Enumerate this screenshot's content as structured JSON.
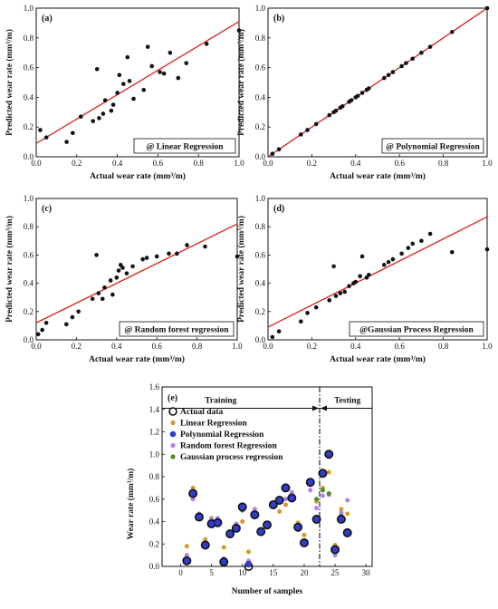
{
  "chart_data": [
    {
      "id": "a",
      "type": "scatter",
      "panel_label": "(a)",
      "legend": "@ Linear Regression",
      "xlabel": "Actual wear rate (mm³/m)",
      "ylabel": "Predicted wear rate (mm³/m)",
      "xlim": [
        0,
        1
      ],
      "ylim": [
        0,
        1.0
      ],
      "xticks": [
        "0.0",
        "0.2",
        "0.4",
        "0.6",
        "0.8",
        "1.0"
      ],
      "yticks": [
        "0.0",
        "0.2",
        "0.4",
        "0.6",
        "0.8",
        "1.0"
      ],
      "fit_line": {
        "intercept": 0.09,
        "slope": 0.82,
        "color": "#d62020"
      },
      "points": [
        [
          0.02,
          0.18
        ],
        [
          0.05,
          0.13
        ],
        [
          0.15,
          0.1
        ],
        [
          0.18,
          0.16
        ],
        [
          0.22,
          0.27
        ],
        [
          0.28,
          0.24
        ],
        [
          0.3,
          0.59
        ],
        [
          0.31,
          0.26
        ],
        [
          0.33,
          0.29
        ],
        [
          0.34,
          0.38
        ],
        [
          0.37,
          0.31
        ],
        [
          0.38,
          0.35
        ],
        [
          0.4,
          0.43
        ],
        [
          0.41,
          0.55
        ],
        [
          0.43,
          0.49
        ],
        [
          0.45,
          0.67
        ],
        [
          0.46,
          0.51
        ],
        [
          0.48,
          0.39
        ],
        [
          0.53,
          0.45
        ],
        [
          0.55,
          0.74
        ],
        [
          0.57,
          0.61
        ],
        [
          0.61,
          0.57
        ],
        [
          0.63,
          0.56
        ],
        [
          0.66,
          0.7
        ],
        [
          0.7,
          0.53
        ],
        [
          0.74,
          0.63
        ],
        [
          0.84,
          0.76
        ],
        [
          1.0,
          0.85
        ]
      ]
    },
    {
      "id": "b",
      "type": "scatter",
      "panel_label": "(b)",
      "legend": "@ Polynomial Regression",
      "xlabel": "Actual wear rate (mm³/m)",
      "ylabel": "Predicted wear rate (mm³/m)",
      "xlim": [
        0,
        1
      ],
      "ylim": [
        0,
        1.0
      ],
      "xticks": [
        "0.0",
        "0.2",
        "0.4",
        "0.6",
        "0.8",
        "1.0"
      ],
      "yticks": [
        "0.0",
        "0.2",
        "0.4",
        "0.6",
        "0.8",
        "1.0"
      ],
      "fit_line": {
        "intercept": 0.0,
        "slope": 1.0,
        "color": "#d62020"
      },
      "points": [
        [
          0.02,
          0.02
        ],
        [
          0.05,
          0.05
        ],
        [
          0.15,
          0.15
        ],
        [
          0.18,
          0.18
        ],
        [
          0.22,
          0.22
        ],
        [
          0.28,
          0.28
        ],
        [
          0.3,
          0.3
        ],
        [
          0.31,
          0.31
        ],
        [
          0.33,
          0.33
        ],
        [
          0.34,
          0.34
        ],
        [
          0.37,
          0.37
        ],
        [
          0.38,
          0.38
        ],
        [
          0.4,
          0.4
        ],
        [
          0.41,
          0.41
        ],
        [
          0.43,
          0.43
        ],
        [
          0.45,
          0.45
        ],
        [
          0.46,
          0.46
        ],
        [
          0.53,
          0.53
        ],
        [
          0.55,
          0.55
        ],
        [
          0.57,
          0.57
        ],
        [
          0.61,
          0.61
        ],
        [
          0.63,
          0.63
        ],
        [
          0.66,
          0.66
        ],
        [
          0.7,
          0.7
        ],
        [
          0.74,
          0.74
        ],
        [
          0.84,
          0.84
        ],
        [
          1.0,
          1.0
        ]
      ]
    },
    {
      "id": "c",
      "type": "scatter",
      "panel_label": "(c)",
      "legend": "@ Random forest regression",
      "xlabel": "Actual wear rate (mm³/m)",
      "ylabel": "Predicted wear rate (mm³/m)",
      "xlim": [
        0,
        1
      ],
      "ylim": [
        0,
        1.0
      ],
      "xticks": [
        "0.0",
        "0.2",
        "0.4",
        "0.6",
        "0.8",
        "1.0"
      ],
      "yticks": [
        "0.0",
        "0.2",
        "0.4",
        "0.6",
        "0.8",
        "1.0"
      ],
      "fit_line": {
        "intercept": 0.12,
        "slope": 0.7,
        "color": "#d62020"
      },
      "points": [
        [
          0.01,
          0.04
        ],
        [
          0.03,
          0.07
        ],
        [
          0.05,
          0.12
        ],
        [
          0.15,
          0.11
        ],
        [
          0.18,
          0.16
        ],
        [
          0.21,
          0.2
        ],
        [
          0.28,
          0.29
        ],
        [
          0.3,
          0.6
        ],
        [
          0.31,
          0.33
        ],
        [
          0.33,
          0.29
        ],
        [
          0.34,
          0.37
        ],
        [
          0.37,
          0.42
        ],
        [
          0.38,
          0.32
        ],
        [
          0.4,
          0.44
        ],
        [
          0.41,
          0.49
        ],
        [
          0.42,
          0.53
        ],
        [
          0.43,
          0.51
        ],
        [
          0.45,
          0.47
        ],
        [
          0.48,
          0.52
        ],
        [
          0.53,
          0.57
        ],
        [
          0.55,
          0.58
        ],
        [
          0.6,
          0.59
        ],
        [
          0.66,
          0.61
        ],
        [
          0.7,
          0.61
        ],
        [
          0.75,
          0.67
        ],
        [
          0.84,
          0.66
        ],
        [
          1.0,
          0.59
        ]
      ]
    },
    {
      "id": "d",
      "type": "scatter",
      "panel_label": "(d)",
      "legend": "@Gaussian Process Regression",
      "xlabel": "Actual wear rate (mm³/m)",
      "ylabel": "Predicted wear rate (mm³/m)",
      "xlim": [
        0,
        1
      ],
      "ylim": [
        0,
        1.0
      ],
      "xticks": [
        "0.0",
        "0.2",
        "0.4",
        "0.6",
        "0.8",
        "1.0"
      ],
      "yticks": [
        "0.0",
        "0.2",
        "0.4",
        "0.6",
        "0.8",
        "1.0"
      ],
      "fit_line": {
        "intercept": 0.09,
        "slope": 0.78,
        "color": "#d62020"
      },
      "points": [
        [
          0.02,
          0.02
        ],
        [
          0.05,
          0.06
        ],
        [
          0.15,
          0.13
        ],
        [
          0.18,
          0.19
        ],
        [
          0.22,
          0.23
        ],
        [
          0.28,
          0.28
        ],
        [
          0.3,
          0.52
        ],
        [
          0.31,
          0.31
        ],
        [
          0.33,
          0.33
        ],
        [
          0.35,
          0.34
        ],
        [
          0.37,
          0.38
        ],
        [
          0.39,
          0.4
        ],
        [
          0.4,
          0.41
        ],
        [
          0.42,
          0.45
        ],
        [
          0.43,
          0.59
        ],
        [
          0.45,
          0.44
        ],
        [
          0.46,
          0.46
        ],
        [
          0.53,
          0.53
        ],
        [
          0.55,
          0.55
        ],
        [
          0.57,
          0.57
        ],
        [
          0.61,
          0.61
        ],
        [
          0.64,
          0.65
        ],
        [
          0.66,
          0.68
        ],
        [
          0.7,
          0.7
        ],
        [
          0.74,
          0.75
        ],
        [
          0.84,
          0.62
        ],
        [
          1.0,
          0.64
        ]
      ]
    },
    {
      "id": "e",
      "type": "scatter",
      "panel_label": "(e)",
      "xlabel": "Number of samples",
      "ylabel": "Wear rate (mm³/m)",
      "xlim": [
        -3,
        31
      ],
      "ylim": [
        0.0,
        1.6
      ],
      "xticks": [
        "0",
        "5",
        "10",
        "15",
        "20",
        "25",
        "30"
      ],
      "yticks": [
        "0.0",
        "0.2",
        "0.4",
        "0.6",
        "0.8",
        "1.0",
        "1.2",
        "1.4",
        "1.6"
      ],
      "annotations": {
        "training": "Training",
        "testing": "Testing",
        "split_x": 22.5,
        "arrow_y": 1.41
      },
      "series": [
        {
          "name": "Actual data",
          "color": "#6b6b2a",
          "style": "open-large",
          "x": [
            1,
            2,
            3,
            4,
            5,
            6,
            7,
            8,
            9,
            10,
            11,
            12,
            13,
            14,
            15,
            16,
            17,
            18,
            19,
            20,
            21,
            22,
            23,
            24,
            25,
            26,
            27
          ],
          "y": [
            0.05,
            0.65,
            0.44,
            0.19,
            0.38,
            0.39,
            0.04,
            0.29,
            0.34,
            0.53,
            0.0,
            0.46,
            0.31,
            0.37,
            0.55,
            0.59,
            0.7,
            0.61,
            0.35,
            0.21,
            0.75,
            0.42,
            0.83,
            1.0,
            0.15,
            0.42,
            0.3
          ]
        },
        {
          "name": "Linear Regression",
          "color": "#d59a2a",
          "style": "small",
          "x": [
            1,
            2,
            3,
            4,
            5,
            6,
            7,
            8,
            9,
            10,
            11,
            12,
            13,
            14,
            15,
            16,
            17,
            18,
            19,
            20,
            21,
            22,
            23,
            24,
            25,
            26,
            27
          ],
          "y": [
            0.18,
            0.7,
            0.45,
            0.24,
            0.43,
            0.4,
            0.17,
            0.31,
            0.36,
            0.4,
            0.13,
            0.44,
            0.33,
            0.38,
            0.54,
            0.49,
            0.55,
            0.6,
            0.39,
            0.28,
            0.76,
            0.58,
            0.7,
            0.84,
            0.19,
            0.51,
            0.47
          ]
        },
        {
          "name": "Polynomial Regression",
          "color": "#2f3fc8",
          "style": "medium",
          "x": [
            1,
            2,
            3,
            4,
            5,
            6,
            7,
            8,
            9,
            10,
            11,
            12,
            13,
            14,
            15,
            16,
            17,
            18,
            19,
            20,
            21,
            22,
            23,
            24,
            25,
            26,
            27
          ],
          "y": [
            0.05,
            0.65,
            0.44,
            0.19,
            0.38,
            0.39,
            0.04,
            0.29,
            0.34,
            0.53,
            0.02,
            0.46,
            0.31,
            0.37,
            0.55,
            0.59,
            0.7,
            0.61,
            0.35,
            0.21,
            0.75,
            0.42,
            0.83,
            1.0,
            0.15,
            0.42,
            0.3
          ]
        },
        {
          "name": "Random forest Regression",
          "color": "#b57ff0",
          "style": "small",
          "x": [
            1,
            2,
            3,
            4,
            5,
            6,
            7,
            8,
            9,
            10,
            11,
            12,
            13,
            14,
            15,
            16,
            17,
            18,
            19,
            20,
            21,
            22,
            23,
            24,
            25,
            26,
            27
          ],
          "y": [
            0.1,
            0.6,
            0.47,
            0.2,
            0.42,
            0.43,
            0.07,
            0.28,
            0.38,
            0.5,
            0.05,
            0.51,
            0.3,
            0.36,
            0.56,
            0.58,
            0.6,
            0.66,
            0.34,
            0.2,
            0.68,
            0.52,
            0.63,
            0.64,
            0.1,
            0.48,
            0.59
          ]
        },
        {
          "name": "Gaussian process regression",
          "color": "#4e8a2a",
          "style": "small",
          "x": [
            1,
            2,
            3,
            4,
            5,
            6,
            7,
            8,
            9,
            10,
            11,
            12,
            13,
            14,
            15,
            16,
            17,
            18,
            19,
            20,
            21,
            22,
            23,
            24,
            25,
            26,
            27
          ],
          "y": [
            0.07,
            0.67,
            0.43,
            0.2,
            0.37,
            0.4,
            0.05,
            0.3,
            0.34,
            0.5,
            0.02,
            0.45,
            0.33,
            0.37,
            0.53,
            0.57,
            0.7,
            0.6,
            0.33,
            0.22,
            0.75,
            0.6,
            0.68,
            0.65,
            0.13,
            0.45,
            0.31
          ]
        }
      ]
    }
  ]
}
